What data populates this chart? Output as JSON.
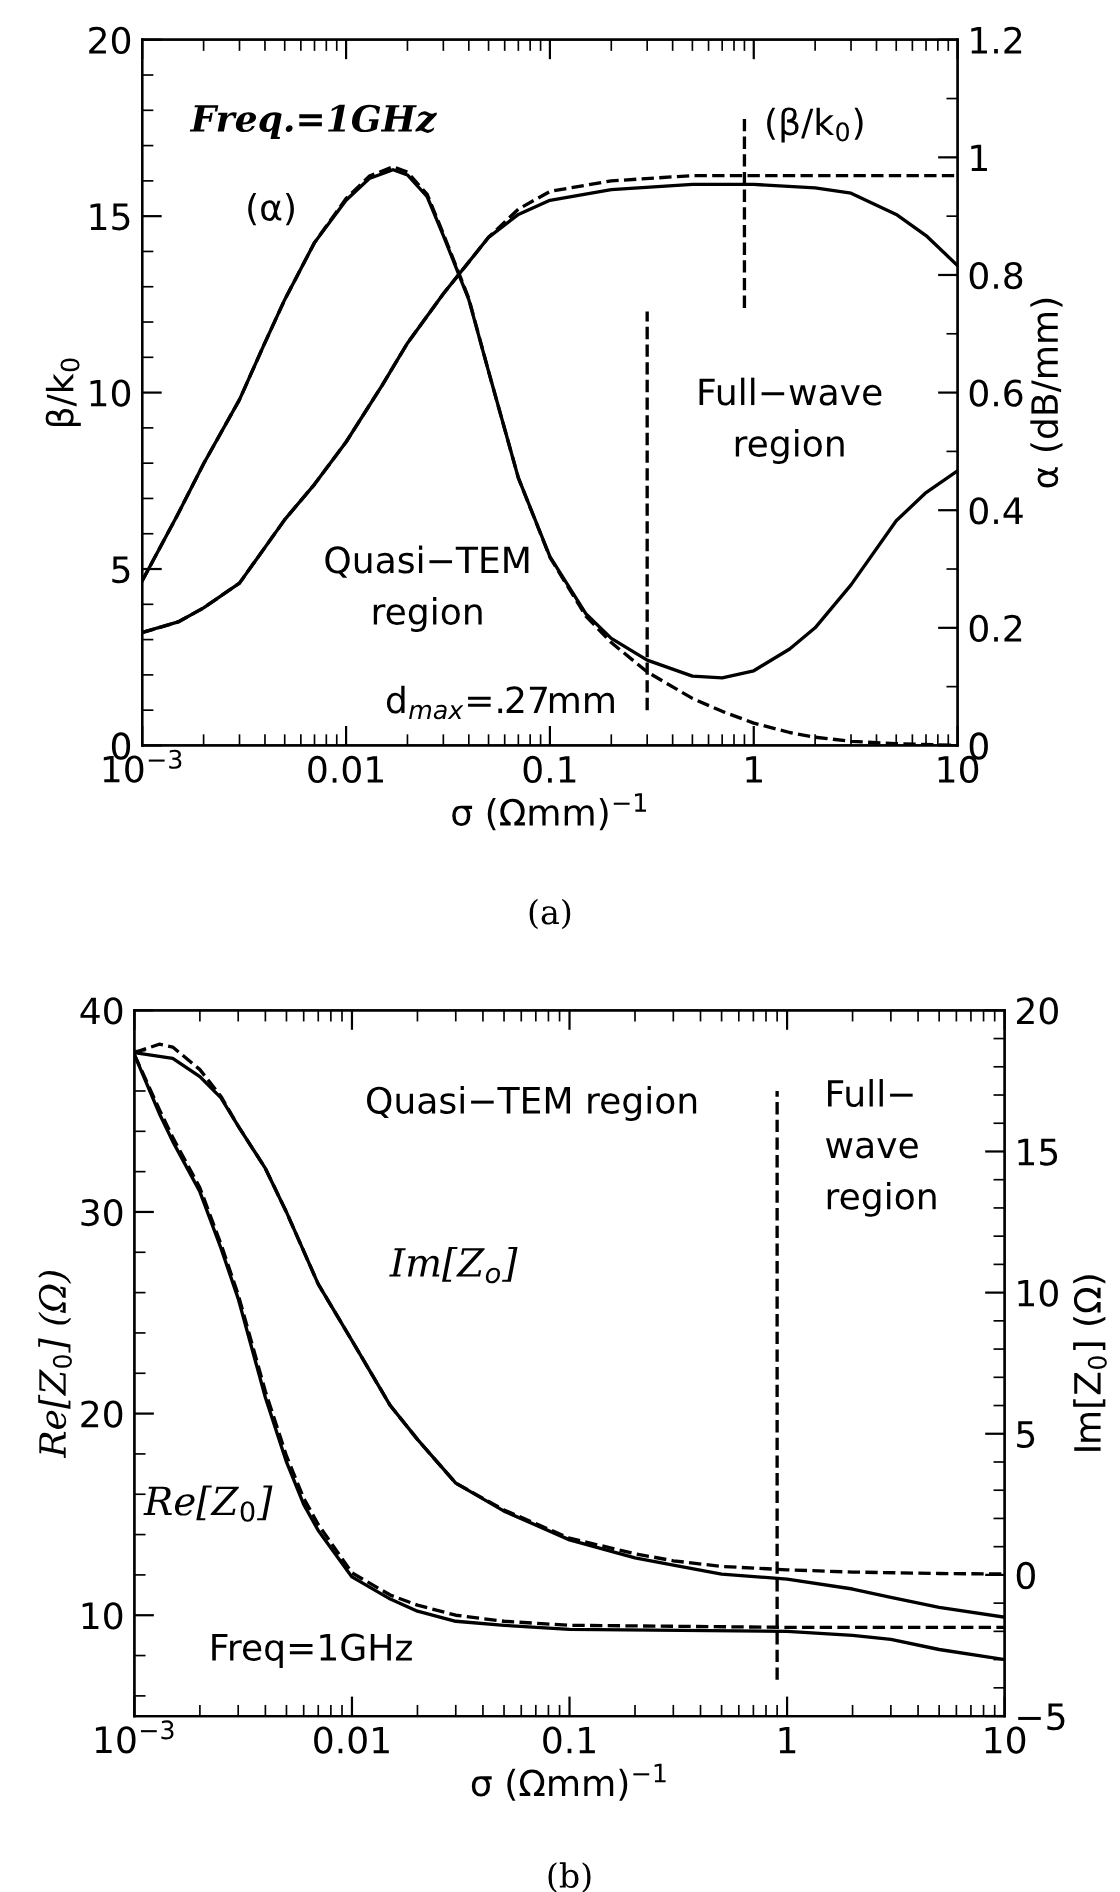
{
  "chart_data": [
    {
      "type": "line",
      "xlabel": "σ (Ωmm)$^{−1}$",
      "ylabel": "β/k$_{0}$",
      "y2label": "α (dB/mm)",
      "log": "x",
      "xlim": [
        0.001,
        10
      ],
      "xticks": [
        {
          "value": 0.001,
          "label": "10$^{−3}$"
        },
        0.01,
        0.1,
        1,
        10
      ],
      "ylim": [
        0,
        20
      ],
      "yticks": [
        0,
        5,
        10,
        15,
        20
      ],
      "y2lim": [
        0,
        1.2
      ],
      "y2ticks": [
        0,
        0.2,
        0.4,
        0.6,
        0.8,
        1,
        1.2
      ],
      "grid": false,
      "legend": false,
      "marker": "none",
      "series": [
        {
          "color": "#000000",
          "line_style": "solid",
          "x": [
            0.001,
            0.0015,
            0.002,
            0.003,
            0.005,
            0.007,
            0.01,
            0.015,
            0.02,
            0.03,
            0.05,
            0.07,
            0.1,
            0.2,
            0.5,
            1,
            2,
            3,
            5,
            7,
            10
          ],
          "values": [
            3.2,
            3.5,
            3.9,
            4.6,
            6.4,
            7.4,
            8.6,
            10.2,
            11.4,
            12.8,
            14.4,
            15.05,
            15.45,
            15.75,
            15.9,
            15.9,
            15.8,
            15.65,
            15.05,
            14.45,
            13.6
          ]
        },
        {
          "color": "#000000",
          "line_style": "dashed",
          "x": [
            0.001,
            0.0015,
            0.002,
            0.003,
            0.005,
            0.007,
            0.01,
            0.015,
            0.02,
            0.03,
            0.05,
            0.07,
            0.1,
            0.2,
            0.5,
            1,
            10
          ],
          "values": [
            3.2,
            3.5,
            3.9,
            4.6,
            6.4,
            7.4,
            8.6,
            10.2,
            11.4,
            12.8,
            14.4,
            15.2,
            15.7,
            16.0,
            16.15,
            16.15,
            16.15
          ]
        },
        {
          "color": "#000000",
          "line_style": "solid",
          "axis": "y2",
          "x": [
            0.001,
            0.0015,
            0.002,
            0.003,
            0.004,
            0.005,
            0.007,
            0.01,
            0.013,
            0.017,
            0.02,
            0.025,
            0.03,
            0.04,
            0.05,
            0.07,
            0.1,
            0.15,
            0.2,
            0.3,
            0.5,
            0.7,
            1,
            1.5,
            2,
            3,
            5,
            7,
            10
          ],
          "values": [
            0.28,
            0.394,
            0.479,
            0.588,
            0.685,
            0.758,
            0.855,
            0.927,
            0.964,
            0.979,
            0.97,
            0.933,
            0.867,
            0.758,
            0.636,
            0.455,
            0.321,
            0.224,
            0.182,
            0.145,
            0.118,
            0.115,
            0.127,
            0.164,
            0.2,
            0.273,
            0.382,
            0.43,
            0.467
          ]
        },
        {
          "color": "#000000",
          "line_style": "dashed",
          "axis": "y2",
          "x": [
            0.001,
            0.0015,
            0.002,
            0.003,
            0.004,
            0.005,
            0.007,
            0.01,
            0.013,
            0.017,
            0.02,
            0.025,
            0.03,
            0.04,
            0.05,
            0.07,
            0.1,
            0.15,
            0.2,
            0.3,
            0.5,
            0.7,
            1,
            1.5,
            2,
            3,
            5,
            10
          ],
          "values": [
            0.28,
            0.394,
            0.479,
            0.588,
            0.685,
            0.758,
            0.855,
            0.93,
            0.968,
            0.984,
            0.975,
            0.937,
            0.87,
            0.76,
            0.636,
            0.455,
            0.32,
            0.22,
            0.175,
            0.125,
            0.08,
            0.058,
            0.038,
            0.022,
            0.014,
            0.007,
            0.003,
            0.0
          ]
        },
        {
          "color": "#000000",
          "line_style": "dashed",
          "x": [
            0.3,
            0.3
          ],
          "values": [
            1.0,
            12.3
          ]
        },
        {
          "color": "#000000",
          "line_style": "dashed",
          "x": [
            0.9,
            0.9
          ],
          "values": [
            12.4,
            17.9
          ]
        }
      ],
      "annotations": [
        "Freq.=1GHz",
        "(α)",
        "(β/k$_{0}$)",
        "Quasi−TEM\nregion",
        "Full−wave\nregion",
        "d$_{max}$=.27mm",
        "(a)"
      ]
    },
    {
      "type": "line",
      "xlabel": "σ (Ωmm)$^{−1}$",
      "ylabel": "Re[Z$_{0}$] (Ω)",
      "y2label": "Im[Z$_{0}$] (Ω)",
      "log": "x",
      "xlim": [
        0.001,
        10
      ],
      "xticks": [
        {
          "value": 0.001,
          "label": "10$^{−3}$"
        },
        0.01,
        0.1,
        1,
        10
      ],
      "ylim": [
        5,
        40
      ],
      "yticks": [
        10,
        20,
        30,
        40
      ],
      "y2lim": [
        -5,
        20
      ],
      "y2ticks": [
        {
          "value": -5,
          "label": "−5"
        },
        0,
        5,
        10,
        15,
        20
      ],
      "grid": false,
      "legend": false,
      "marker": "none",
      "series": [
        {
          "color": "#000000",
          "line_style": "solid",
          "x": [
            0.001,
            0.0013,
            0.0015,
            0.002,
            0.0025,
            0.003,
            0.004,
            0.005,
            0.006,
            0.007,
            0.01,
            0.015,
            0.02,
            0.03,
            0.05,
            0.1,
            1,
            2,
            3,
            5,
            10
          ],
          "values": [
            37.8,
            34.9,
            33.5,
            31.0,
            28.2,
            25.7,
            20.8,
            17.6,
            15.5,
            14.2,
            11.9,
            10.8,
            10.2,
            9.7,
            9.5,
            9.3,
            9.2,
            9.0,
            8.8,
            8.3,
            7.8
          ]
        },
        {
          "color": "#000000",
          "line_style": "dashed",
          "x": [
            0.001,
            0.0013,
            0.0015,
            0.002,
            0.0025,
            0.003,
            0.004,
            0.005,
            0.006,
            0.007,
            0.01,
            0.015,
            0.02,
            0.03,
            0.05,
            0.1,
            1,
            10
          ],
          "values": [
            37.8,
            35.1,
            33.7,
            31.2,
            28.4,
            25.9,
            21.1,
            17.9,
            15.8,
            14.5,
            12.1,
            11.0,
            10.5,
            10.0,
            9.7,
            9.5,
            9.4,
            9.4
          ]
        },
        {
          "color": "#000000",
          "line_style": "solid",
          "axis": "y2",
          "x": [
            0.001,
            0.0015,
            0.002,
            0.0025,
            0.003,
            0.004,
            0.005,
            0.007,
            0.01,
            0.015,
            0.02,
            0.03,
            0.05,
            0.1,
            0.2,
            0.3,
            0.5,
            1,
            2,
            3,
            5,
            10
          ],
          "values": [
            18.5,
            18.3,
            17.65,
            16.9,
            15.9,
            14.4,
            12.85,
            10.3,
            8.3,
            6.0,
            4.8,
            3.25,
            2.26,
            1.24,
            0.6,
            0.35,
            0.03,
            -0.15,
            -0.5,
            -0.8,
            -1.15,
            -1.5
          ]
        },
        {
          "color": "#000000",
          "line_style": "dashed",
          "axis": "y2",
          "x": [
            0.001,
            0.0013,
            0.0015,
            0.002,
            0.0025,
            0.003,
            0.004,
            0.005,
            0.007,
            0.01,
            0.015,
            0.02,
            0.03,
            0.05,
            0.1,
            0.2,
            0.3,
            0.5,
            1,
            2,
            5,
            10
          ],
          "values": [
            18.5,
            18.8,
            18.7,
            17.9,
            16.95,
            15.9,
            14.4,
            12.85,
            10.3,
            8.3,
            6.0,
            4.8,
            3.25,
            2.3,
            1.3,
            0.75,
            0.5,
            0.3,
            0.18,
            0.1,
            0.05,
            0.03
          ]
        },
        {
          "color": "#000000",
          "line_style": "dashed",
          "x": [
            0.9,
            0.9
          ],
          "values": [
            6.8,
            36
          ]
        }
      ],
      "annotations": [
        "Quasi−TEM region",
        "Full−\nwave\nregion",
        "Im[Z$_{o}$]",
        "Re[Z$_{0}$]",
        "Freq=1GHz",
        "(b)"
      ]
    }
  ]
}
